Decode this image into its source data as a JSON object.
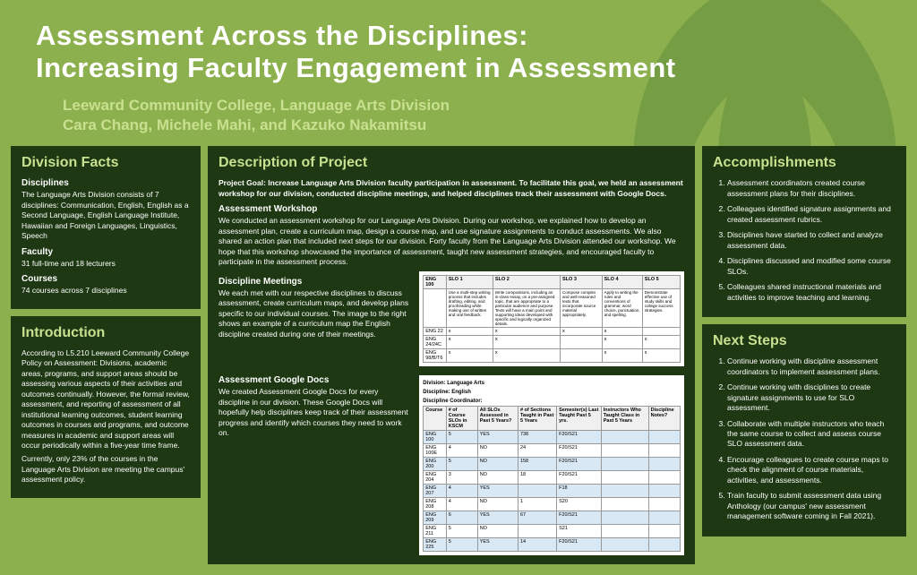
{
  "header": {
    "title_line1": "Assessment Across the Disciplines:",
    "title_line2": "Increasing Faculty Engagement in Assessment",
    "institution": "Leeward Community College, Language Arts Division",
    "authors": "Cara Chang, Michele Mahi, and Kazuko Nakamitsu"
  },
  "division_facts": {
    "title": "Division Facts",
    "disciplines_label": "Disciplines",
    "disciplines_text": "The Language Arts Division consists of 7 disciplines: Communication, English, English as a Second Language, English Language Institute, Hawaiian and Foreign Languages, Linguistics, Speech",
    "faculty_label": "Faculty",
    "faculty_text": "31 full-time and 18 lecturers",
    "courses_label": "Courses",
    "courses_text": "74 courses across 7 disciplines"
  },
  "introduction": {
    "title": "Introduction",
    "para1": "According to L5.210 Leeward Community College Policy on Assessment: Divisions, academic areas, programs, and support areas should be assessing various aspects of their activities and outcomes continually. However, the formal review, assessment, and reporting of assessment of all institutional learning outcomes, student learning outcomes in courses and programs, and outcome measures in academic and support areas will occur periodically within a five-year time frame.",
    "para2": "Currently, only 23% of the courses in the Language Arts Division are meeting the campus' assessment policy."
  },
  "description": {
    "title": "Description of Project",
    "goal": "Project Goal: Increase Language Arts Division faculty participation in assessment. To facilitate this goal, we held an assessment workshop for our division, conducted discipline meetings, and helped disciplines track their assessment with Google Docs.",
    "workshop_label": "Assessment Workshop",
    "workshop_text": "We conducted an assessment workshop for our Language Arts Division. During our workshop, we explained how to develop an assessment plan, create a curriculum map, design a course map, and use signature assignments to conduct assessments. We also shared an action plan that included next steps for our division. Forty faculty from the Language Arts Division attended our workshop. We hope that this workshop showcased the importance of assessment, taught new assessment strategies, and encouraged faculty to participate in the assessment process.",
    "meetings_label": "Discipline Meetings",
    "meetings_text": "We each met with our respective disciplines to discuss assessment, create curriculum maps, and develop plans specific to our individual courses. The image to the right shows an example of a curriculum map the English discipline created during one of their meetings.",
    "docs_label": "Assessment Google Docs",
    "docs_text": "We created Assessment Google Docs for every discipline in our division. These Google Docs will hopefully help disciplines keep track of their assessment progress and identify which courses they need to work on."
  },
  "table1": {
    "headers": [
      "ENG 100",
      "SLO 1",
      "SLO 2",
      "SLO 3",
      "SLO 4",
      "SLO 5"
    ],
    "slo_texts": [
      "Use a multi-step writing process that includes drafting, editing, and proofreading while making use of written and oral feedback.",
      "Write compositions, including an in-class essay, on a pre-assigned topic, that are appropriate to a particular audience and purpose. Texts will have a main point and supporting ideas developed with specific and logically organized details.",
      "Compose complex and well-reasoned texts that incorporate source material appropriately.",
      "Apply to writing the rules and conventions of grammar, word choice, punctuation, and spelling.",
      "Demonstrate effective use of study skills and college success strategies."
    ],
    "rows": [
      [
        "ENG 22",
        "x",
        "x",
        "x",
        "x",
        ""
      ],
      [
        "ENG 24/24C",
        "x",
        "x",
        "",
        "x",
        "x"
      ],
      [
        "ENG 98/B/T6",
        "x",
        "x",
        "",
        "x",
        "x"
      ]
    ]
  },
  "table2": {
    "division_label": "Division: Language Arts",
    "discipline_label": "Discipline: English",
    "coordinator_label": "Discipline Coordinator:",
    "headers": [
      "Course",
      "# of Course SLOs in KSCM",
      "All SLOs Assessed in Past 5 Years?",
      "# of Sections Taught in Past 5 Years",
      "Semester(s) Last Taught Past 5 yrs.",
      "Instructors Who Taught Class in Past 5 Years",
      "Discipline Notes?"
    ],
    "rows": [
      [
        "ENG 100",
        "5",
        "YES",
        "738",
        "F20/S21",
        "",
        ""
      ],
      [
        "ENG 100E",
        "4",
        "NO",
        "24",
        "F20/S21",
        "",
        ""
      ],
      [
        "ENG 200",
        "5",
        "NO",
        "158",
        "F20/S21",
        "",
        ""
      ],
      [
        "ENG 204",
        "3",
        "NO",
        "18",
        "F20/S21",
        "",
        ""
      ],
      [
        "ENG 207",
        "4",
        "YES",
        "",
        "F18",
        "",
        ""
      ],
      [
        "ENG 208",
        "4",
        "NO",
        "1",
        "S20",
        "",
        ""
      ],
      [
        "ENG 209",
        "6",
        "YES",
        "67",
        "F20/S21",
        "",
        ""
      ],
      [
        "ENG 211",
        "5",
        "NO",
        "",
        "S21",
        "",
        ""
      ],
      [
        "ENG 225",
        "5",
        "YES",
        "14",
        "F20/S21",
        "",
        ""
      ]
    ]
  },
  "accomplishments": {
    "title": "Accomplishments",
    "items": [
      "Assessment coordinators created course assessment plans for their disciplines.",
      "Colleagues identified signature assignments and created assessment rubrics.",
      "Disciplines have started to collect and analyze assessment data.",
      "Disciplines discussed and modified some course SLOs.",
      "Colleagues shared instructional materials and activities to improve teaching and learning."
    ]
  },
  "next_steps": {
    "title": "Next Steps",
    "items": [
      "Continue working with discipline assessment coordinators to implement assessment plans.",
      "Continue working with disciplines to create signature assignments to use for SLO assessment.",
      "Collaborate with multiple instructors who teach the same course to collect and assess course SLO assessment data.",
      "Encourage colleagues to create course maps to check the alignment of course materials, activities, and assessments.",
      "Train faculty to submit assessment data using Anthology (our campus' new assessment management software coming in Fall 2021)."
    ]
  },
  "colors": {
    "bg": "#8db04f",
    "panel_bg": "#1d3812",
    "accent": "#c8e08f",
    "text": "#ffffff",
    "leaf": "#4a7a2f"
  }
}
